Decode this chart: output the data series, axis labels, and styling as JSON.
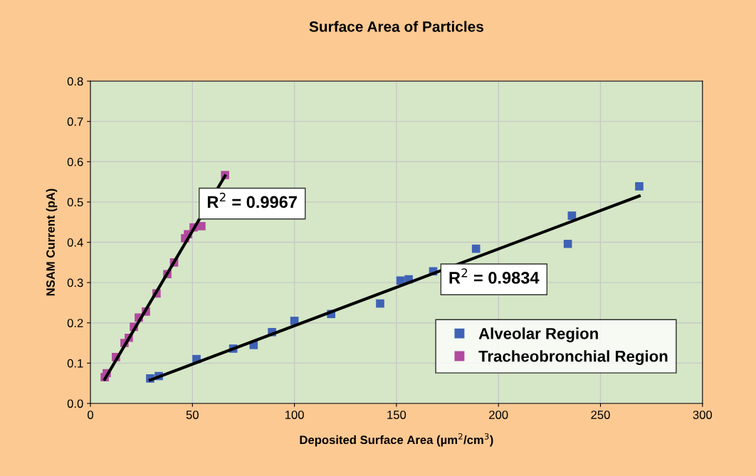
{
  "chart_data": {
    "type": "scatter",
    "title": "Surface Area of Particles",
    "xlabel": "Deposited Surface Area (µm$^{2}$/cm$^{3}$)",
    "ylabel": "NSAM Current (pA)",
    "series": [
      {
        "name": "Alveolar Region",
        "color": "#3f62b6",
        "marker": "square",
        "x": [
          29.3,
          33.5,
          52,
          70,
          80,
          89,
          100,
          118,
          142,
          152,
          156,
          168,
          189,
          234,
          236,
          269
        ],
        "values": [
          0.062,
          0.068,
          0.11,
          0.136,
          0.145,
          0.177,
          0.205,
          0.222,
          0.248,
          0.305,
          0.308,
          0.328,
          0.384,
          0.396,
          0.466,
          0.539
        ]
      },
      {
        "name": "Tracheobronchial Region",
        "color": "#b24a9f",
        "marker": "square",
        "x": [
          7,
          8,
          12.5,
          16.7,
          18.8,
          21.3,
          23.7,
          27.2,
          32.4,
          37.7,
          41,
          46.4,
          47.8,
          50.6,
          54.4,
          66
        ],
        "values": [
          0.065,
          0.075,
          0.115,
          0.15,
          0.163,
          0.19,
          0.213,
          0.228,
          0.273,
          0.321,
          0.35,
          0.41,
          0.42,
          0.437,
          0.44,
          0.567
        ]
      },
      {
        "type": "line",
        "color": "#000000",
        "x": [
          29.3,
          269
        ],
        "values": [
          0.058,
          0.515
        ]
      },
      {
        "type": "line",
        "color": "#000000",
        "x": [
          7,
          66
        ],
        "values": [
          0.06,
          0.565
        ]
      }
    ],
    "annotations": [
      "R$^{2}$ = 0.9967",
      "R$^{2}$ = 0.9834"
    ],
    "xlim": [
      0,
      300
    ],
    "xticks": [
      0,
      50,
      100,
      150,
      200,
      250,
      300
    ],
    "ylim": [
      0,
      0.8
    ],
    "yticks": [
      {
        "value": 0,
        "label": "0.0"
      },
      0.1,
      0.2,
      0.3,
      0.4,
      0.5,
      0.6,
      0.7,
      0.8
    ],
    "grid": true,
    "legend": "bottom right"
  }
}
